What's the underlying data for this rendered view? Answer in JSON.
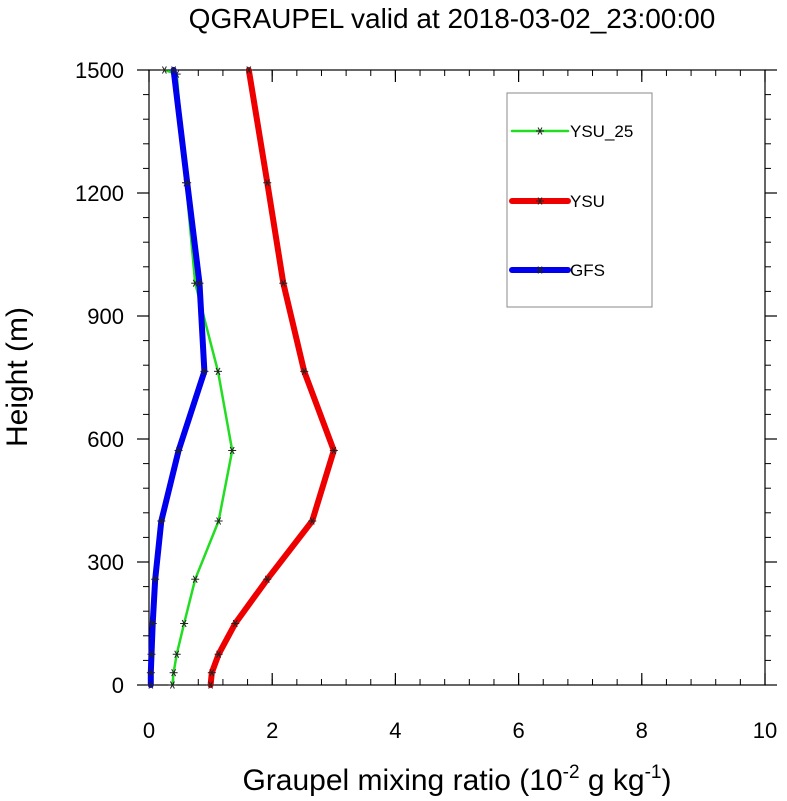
{
  "chart_data": {
    "type": "line",
    "title": "QGRAUPEL valid at 2018-03-02_23:00:00",
    "xlabel_main": "Graupel mixing ratio (10",
    "xlabel_exp1": "-2",
    "xlabel_mid": " g kg",
    "xlabel_exp2": "-1",
    "xlabel_end": ")",
    "ylabel": "Height (m)",
    "xlim": [
      0,
      10
    ],
    "ylim": [
      0,
      1500
    ],
    "xticks": [
      0,
      2,
      4,
      6,
      8,
      10
    ],
    "yticks": [
      0,
      300,
      600,
      900,
      1200,
      1500
    ],
    "x_minor_step": 0.4,
    "y_minor_step": 60,
    "grid": false,
    "legend_position": "top-right",
    "series": [
      {
        "name": "YSU_25",
        "color": "#22dd22",
        "points": [
          [
            0.38,
            0
          ],
          [
            0.4,
            30
          ],
          [
            0.45,
            75
          ],
          [
            0.57,
            150
          ],
          [
            0.75,
            258
          ],
          [
            1.13,
            400
          ],
          [
            1.35,
            572
          ],
          [
            1.12,
            765
          ],
          [
            0.75,
            980
          ],
          [
            0.6,
            1225
          ],
          [
            0.45,
            1490
          ],
          [
            0.25,
            1500
          ]
        ]
      },
      {
        "name": "YSU",
        "color": "#ee0000",
        "points": [
          [
            1.0,
            0
          ],
          [
            1.02,
            30
          ],
          [
            1.13,
            75
          ],
          [
            1.4,
            150
          ],
          [
            1.92,
            258
          ],
          [
            2.65,
            400
          ],
          [
            3.0,
            572
          ],
          [
            2.52,
            765
          ],
          [
            2.18,
            980
          ],
          [
            1.92,
            1225
          ],
          [
            1.62,
            1500
          ]
        ]
      },
      {
        "name": "GFS",
        "color": "#0000ee",
        "points": [
          [
            0.03,
            0
          ],
          [
            0.03,
            30
          ],
          [
            0.04,
            75
          ],
          [
            0.06,
            150
          ],
          [
            0.1,
            258
          ],
          [
            0.2,
            400
          ],
          [
            0.48,
            572
          ],
          [
            0.9,
            765
          ],
          [
            0.82,
            980
          ],
          [
            0.62,
            1225
          ],
          [
            0.4,
            1500
          ]
        ]
      }
    ]
  }
}
